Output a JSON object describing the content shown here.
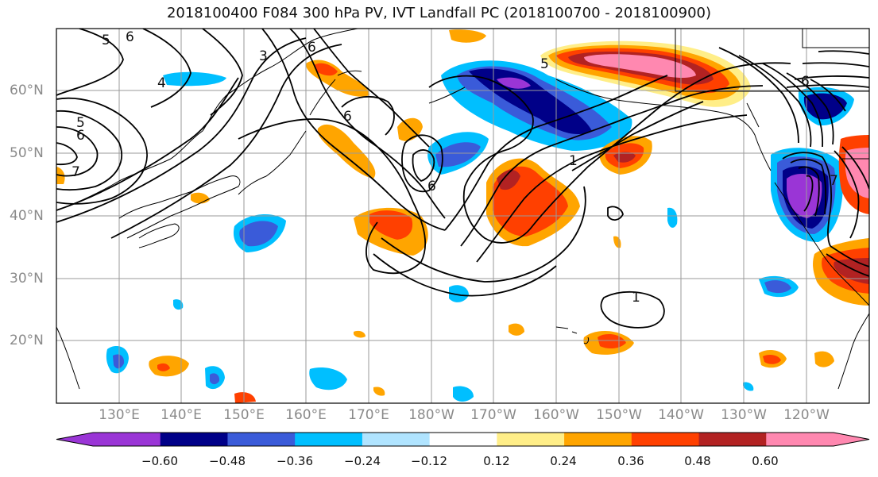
{
  "title": "2018100400 F084 300 hPa PV, IVT Landfall PC (2018100700 - 2018100900)",
  "latitude_labels": [
    "60°N",
    "50°N",
    "40°N",
    "30°N",
    "20°N"
  ],
  "longitude_labels": [
    "130°E",
    "140°E",
    "150°E",
    "160°E",
    "170°E",
    "180°W",
    "170°W",
    "160°W",
    "150°W",
    "140°W",
    "130°W",
    "120°W"
  ],
  "contour_labels": [
    "6",
    "5",
    "3",
    "4",
    "5",
    "6",
    "7",
    "6",
    "6",
    "5",
    "6",
    "1",
    "1",
    "6",
    "7"
  ],
  "colorbar": {
    "tick_labels": [
      "−0.60",
      "−0.48",
      "−0.36",
      "−0.24",
      "−0.12",
      "0.12",
      "0.24",
      "0.36",
      "0.48",
      "0.60"
    ],
    "colors": [
      "#9a35d6",
      "#000088",
      "#3a5bd9",
      "#00bfff",
      "#b0e4ff",
      "#ffffff",
      "#ffee88",
      "#ffa500",
      "#ff4000",
      "#b22222",
      "#ff88b0"
    ]
  }
}
